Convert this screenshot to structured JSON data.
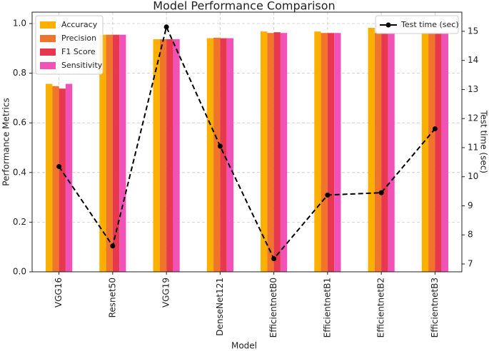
{
  "chart_data": {
    "type": "bar",
    "title": "Model Performance Comparison",
    "x_label": "Model",
    "y_label": "Performance Metrics",
    "y2_label": "Test time (sec)",
    "categories": [
      "VGG16",
      "Resnet50",
      "VGG19",
      "DenseNet121",
      "EfficientnetB0",
      "EfficientnetB1",
      "EfficientnetB2",
      "EfficientnetB3"
    ],
    "series": [
      {
        "name": "Accuracy",
        "color": "#fbb000",
        "values": [
          0.757,
          0.955,
          0.937,
          0.941,
          0.968,
          0.968,
          0.983,
          0.962
        ]
      },
      {
        "name": "Precision",
        "color": "#f0742a",
        "values": [
          0.748,
          0.955,
          0.937,
          0.943,
          0.962,
          0.962,
          0.962,
          0.962
        ]
      },
      {
        "name": "F1 Score",
        "color": "#e8384f",
        "values": [
          0.738,
          0.955,
          0.937,
          0.941,
          0.965,
          0.962,
          0.962,
          0.962
        ]
      },
      {
        "name": "Sensitivity",
        "color": "#f052b8",
        "values": [
          0.757,
          0.955,
          0.937,
          0.941,
          0.962,
          0.962,
          0.962,
          0.962
        ]
      },
      {
        "name": "Test time (sec)",
        "color": "#000000",
        "axis": "y2",
        "values": [
          10.35,
          7.62,
          15.15,
          11.05,
          7.18,
          9.37,
          9.45,
          11.65
        ]
      }
    ],
    "ylim": [
      0,
      1.046
    ],
    "yticks": [
      {
        "value": 0,
        "label": "0.0"
      },
      0.2,
      0.4,
      0.6,
      0.8,
      {
        "value": 1,
        "label": "1.0"
      }
    ],
    "y2lim": [
      6.73,
      15.66
    ],
    "y2ticks": [
      7,
      8,
      9,
      10,
      11,
      12,
      13,
      14,
      15
    ],
    "grid": true,
    "legend": "upper left",
    "y2_legend": "upper right"
  }
}
